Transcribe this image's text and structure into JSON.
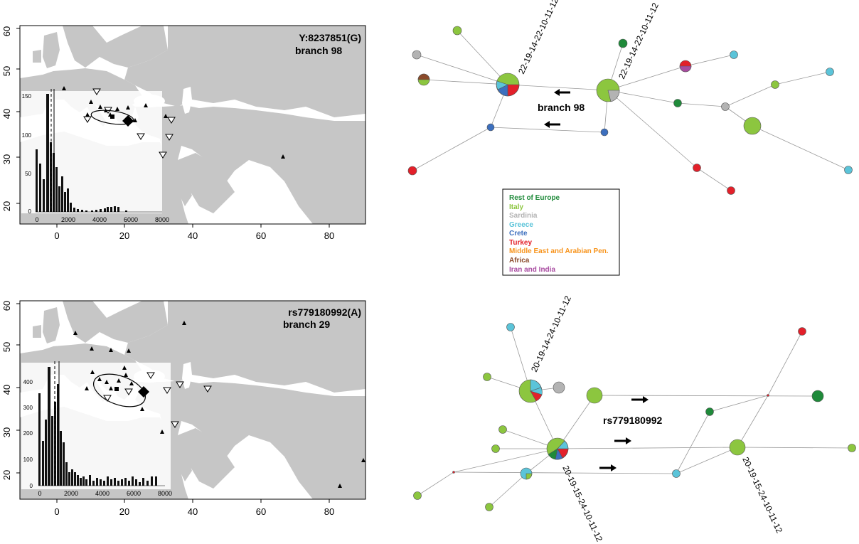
{
  "colors": {
    "land": "#c6c6c6",
    "sea": "#ffffff",
    "rest_of_europe": "#1f8a3a",
    "italy": "#8cc63f",
    "sardinia": "#b3b3b3",
    "greece": "#5bc4d9",
    "crete": "#3c6fbe",
    "turkey": "#e3202a",
    "middle_east": "#f7941d",
    "africa": "#8b4a2b",
    "iran_india": "#a84ba0"
  },
  "panels": [
    {
      "title": "Y:8237851(G)",
      "subtitle": "branch 98",
      "map_x_ticks": [
        "0",
        "20",
        "40",
        "60",
        "80"
      ],
      "map_y_ticks": [
        "20",
        "30",
        "40",
        "50",
        "60"
      ],
      "hist_x_ticks": [
        "0",
        "2000",
        "4000",
        "6000",
        "8000"
      ],
      "hist_y_ticks": [
        "0",
        "50",
        "100",
        "150"
      ]
    },
    {
      "title": "rs779180992(A)",
      "subtitle": "branch 29",
      "map_x_ticks": [
        "0",
        "20",
        "40",
        "60",
        "80"
      ],
      "map_y_ticks": [
        "20",
        "30",
        "40",
        "50",
        "60"
      ],
      "hist_x_ticks": [
        "0",
        "2000",
        "4000",
        "6000",
        "8000"
      ],
      "hist_y_ticks": [
        "0",
        "100",
        "200",
        "300",
        "400"
      ]
    }
  ],
  "networks": [
    {
      "branch_label": "branch 98",
      "node_labels": [
        "22-19-14-22-10-11-12",
        "22-19-14-22-10-11-12"
      ]
    },
    {
      "branch_label": "rs779180992",
      "node_labels": [
        "20-19-14-24-10-11-12",
        "20-19-15-24-10-11-12",
        "20-19-15-24-10-11-12"
      ]
    }
  ],
  "legend": {
    "items": [
      {
        "label": "Rest of Europe",
        "color": "#1f8a3a"
      },
      {
        "label": "Italy",
        "color": "#8cc63f"
      },
      {
        "label": "Sardinia",
        "color": "#b3b3b3"
      },
      {
        "label": "Greece",
        "color": "#5bc4d9"
      },
      {
        "label": "Crete",
        "color": "#3c6fbe"
      },
      {
        "label": "Turkey",
        "color": "#e3202a"
      },
      {
        "label": "Middle East and Arabian Pen.",
        "color": "#f7941d"
      },
      {
        "label": "Africa",
        "color": "#8b4a2b"
      },
      {
        "label": "Iran and India",
        "color": "#a84ba0"
      }
    ]
  }
}
